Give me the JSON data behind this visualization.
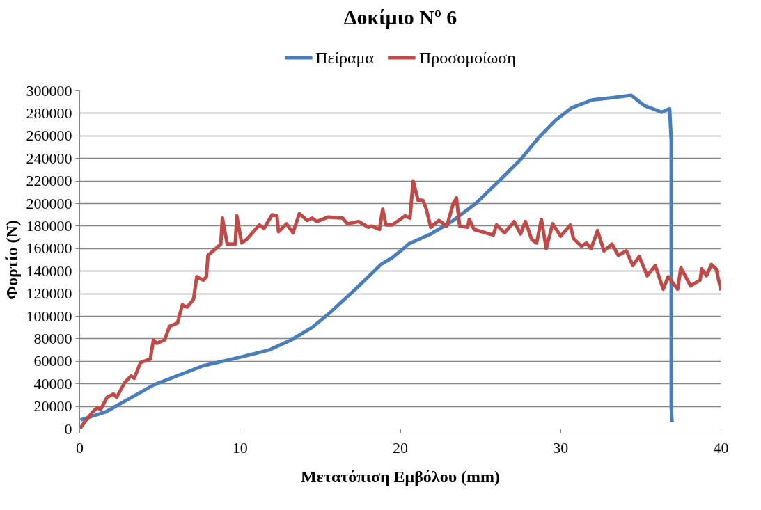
{
  "chart_data": {
    "type": "line",
    "title": "Δοκίμιο Nº 6",
    "xlabel": "Μετατόπιση Εμβόλου (mm)",
    "ylabel": "Φορτίο (N)",
    "xlim": [
      0,
      40
    ],
    "xticks": [
      0,
      10,
      20,
      30,
      40
    ],
    "ylim": [
      0,
      300000
    ],
    "yticks": [
      0,
      20000,
      40000,
      60000,
      80000,
      100000,
      120000,
      140000,
      160000,
      180000,
      200000,
      220000,
      240000,
      260000,
      280000,
      300000
    ],
    "grid": "y",
    "legend": "top",
    "marker": "none",
    "line_style": "solid",
    "series": [
      {
        "name": "Πείραμα",
        "color": "#4a7ebb",
        "x": [
          0.05,
          1.6,
          4.6,
          7.7,
          10.1,
          11.8,
          13.2,
          14.5,
          15.6,
          17.2,
          18.8,
          19.5,
          20.2,
          20.5,
          21.9,
          23.2,
          24.7,
          26.3,
          27.5,
          28.6,
          29.7,
          30.7,
          32.0,
          33.3,
          34.4,
          35.2,
          36.3,
          36.8,
          36.9,
          36.9,
          36.95
        ],
        "values": [
          8000,
          15000,
          39000,
          56000,
          64000,
          70000,
          79000,
          90000,
          103000,
          124000,
          146000,
          152000,
          160000,
          164000,
          173000,
          184000,
          200000,
          222000,
          239000,
          258000,
          274000,
          285000,
          292000,
          294000,
          296000,
          287000,
          281000,
          284000,
          255000,
          19000,
          6000
        ]
      },
      {
        "name": "Προσομοίωση",
        "color": "#be4b48",
        "x": [
          0,
          0.3,
          0.8,
          1.1,
          1.3,
          1.7,
          2.1,
          2.3,
          2.8,
          3.2,
          3.4,
          3.8,
          4.4,
          4.6,
          4.8,
          5.3,
          5.6,
          6.1,
          6.4,
          6.7,
          7.1,
          7.3,
          7.7,
          7.9,
          8.0,
          8.8,
          8.9,
          9.2,
          9.7,
          9.8,
          10.1,
          10.4,
          11.2,
          11.5,
          12.0,
          12.3,
          12.4,
          12.9,
          13.3,
          13.7,
          14.2,
          14.5,
          14.8,
          15.5,
          16.4,
          16.7,
          17.4,
          18.0,
          18.2,
          18.7,
          18.9,
          19.1,
          19.5,
          20.3,
          20.6,
          20.8,
          21.1,
          21.4,
          21.6,
          21.9,
          22.4,
          22.9,
          23.3,
          23.5,
          23.7,
          24.2,
          24.3,
          24.6,
          25.8,
          26.0,
          26.5,
          27.1,
          27.5,
          27.8,
          28.2,
          28.5,
          28.8,
          29.1,
          29.5,
          30.0,
          30.6,
          30.8,
          31.3,
          31.6,
          31.9,
          32.3,
          32.7,
          33.2,
          33.6,
          34.1,
          34.5,
          34.9,
          35.4,
          35.9,
          36.4,
          36.7,
          37.3,
          37.5,
          38.1,
          38.7,
          38.8,
          39.1,
          39.4,
          39.7,
          40.0
        ],
        "values": [
          0,
          6000,
          15000,
          19000,
          17000,
          28000,
          31000,
          28000,
          41000,
          47000,
          45000,
          59000,
          62000,
          79000,
          76000,
          79000,
          91000,
          94000,
          110000,
          108000,
          115000,
          135000,
          132000,
          135000,
          154000,
          164000,
          187000,
          164000,
          164000,
          189000,
          165000,
          168000,
          181000,
          178000,
          190000,
          189000,
          175000,
          182000,
          174000,
          191000,
          185000,
          187000,
          184000,
          188000,
          187000,
          182000,
          184000,
          179000,
          180000,
          177000,
          195000,
          181000,
          181000,
          189000,
          187000,
          220000,
          203000,
          203000,
          196000,
          179000,
          185000,
          180000,
          200000,
          205000,
          180000,
          179000,
          186000,
          177000,
          172000,
          181000,
          174000,
          184000,
          173000,
          184000,
          168000,
          165000,
          186000,
          160000,
          182000,
          171000,
          181000,
          169000,
          162000,
          165000,
          160000,
          176000,
          158000,
          164000,
          154000,
          158000,
          145000,
          153000,
          136000,
          145000,
          124000,
          135000,
          124000,
          143000,
          127000,
          132000,
          142000,
          136000,
          146000,
          142000,
          123000
        ]
      }
    ]
  }
}
